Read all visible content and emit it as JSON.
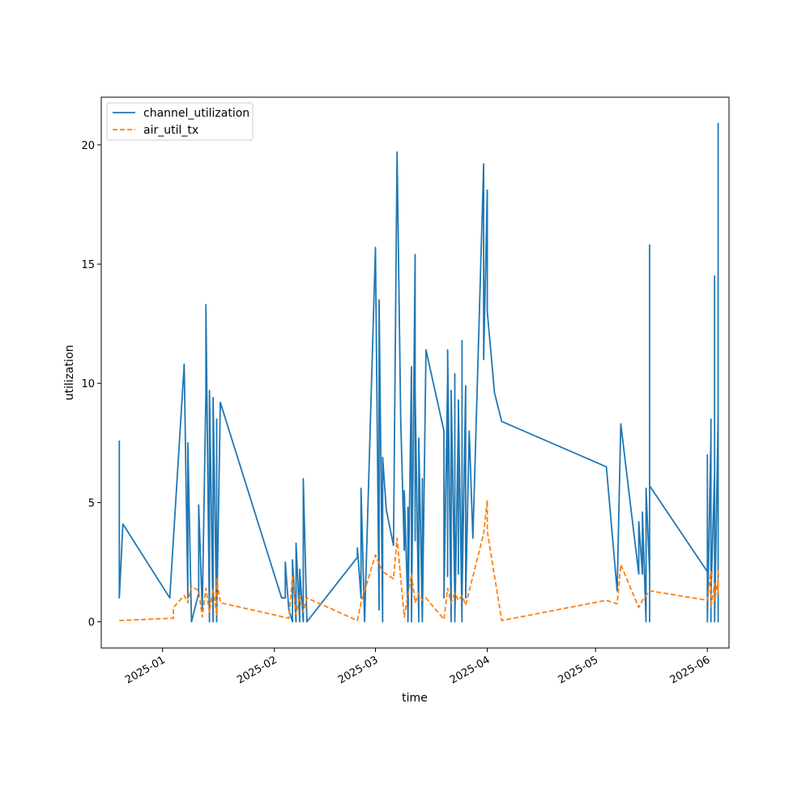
{
  "chart_data": {
    "type": "line",
    "title": "",
    "xlabel": "time",
    "ylabel": "utilization",
    "xlim": [
      "2024-12-15",
      "2025-06-07"
    ],
    "ylim": [
      -1.1,
      22.0
    ],
    "x_ticks": [
      "2025-01-01",
      "2025-02-01",
      "2025-03-01",
      "2025-04-01",
      "2025-05-01",
      "2025-06-01"
    ],
    "x_tick_labels": [
      "2025-01",
      "2025-02",
      "2025-03",
      "2025-04",
      "2025-05",
      "2025-06"
    ],
    "y_ticks": [
      0,
      5,
      10,
      15,
      20
    ],
    "y_tick_labels": [
      "0",
      "5",
      "10",
      "15",
      "20"
    ],
    "grid": false,
    "legend_position": "upper-left",
    "series": [
      {
        "name": "channel_utilization",
        "color": "#1f77b4",
        "style": "solid",
        "points": [
          [
            "2024-12-20",
            7.6
          ],
          [
            "2024-12-20",
            1.0
          ],
          [
            "2024-12-21",
            4.1
          ],
          [
            "2025-01-03",
            1.0
          ],
          [
            "2025-01-07",
            10.8
          ],
          [
            "2025-01-08",
            1.0
          ],
          [
            "2025-01-08",
            7.5
          ],
          [
            "2025-01-09",
            0.0
          ],
          [
            "2025-01-11",
            1.2
          ],
          [
            "2025-01-11",
            4.9
          ],
          [
            "2025-01-12",
            0.5
          ],
          [
            "2025-01-13",
            9.6
          ],
          [
            "2025-01-13",
            13.3
          ],
          [
            "2025-01-14",
            0.0
          ],
          [
            "2025-01-14",
            9.7
          ],
          [
            "2025-01-15",
            0.0
          ],
          [
            "2025-01-15",
            3.2
          ],
          [
            "2025-01-15",
            9.4
          ],
          [
            "2025-01-16",
            0.0
          ],
          [
            "2025-01-16",
            8.5
          ],
          [
            "2025-01-16",
            0.0
          ],
          [
            "2025-01-17",
            9.2
          ],
          [
            "2025-02-03",
            1.0
          ],
          [
            "2025-02-04",
            1.0
          ],
          [
            "2025-02-04",
            2.5
          ],
          [
            "2025-02-05",
            0.5
          ],
          [
            "2025-02-06",
            0.0
          ],
          [
            "2025-02-06",
            2.6
          ],
          [
            "2025-02-07",
            0.0
          ],
          [
            "2025-02-07",
            3.3
          ],
          [
            "2025-02-08",
            0.0
          ],
          [
            "2025-02-08",
            2.2
          ],
          [
            "2025-02-09",
            0.0
          ],
          [
            "2025-02-09",
            5.2
          ],
          [
            "2025-02-09",
            0.5
          ],
          [
            "2025-02-09",
            6.0
          ],
          [
            "2025-02-10",
            0.0
          ],
          [
            "2025-02-24",
            2.7
          ],
          [
            "2025-02-24",
            3.1
          ],
          [
            "2025-02-25",
            1.0
          ],
          [
            "2025-02-25",
            5.6
          ],
          [
            "2025-02-26",
            0.0
          ],
          [
            "2025-03-01",
            15.7
          ],
          [
            "2025-03-02",
            0.5
          ],
          [
            "2025-03-02",
            13.5
          ],
          [
            "2025-03-03",
            0.0
          ],
          [
            "2025-03-03",
            6.9
          ],
          [
            "2025-03-04",
            4.7
          ],
          [
            "2025-03-06",
            3.2
          ],
          [
            "2025-03-07",
            19.7
          ],
          [
            "2025-03-08",
            8.5
          ],
          [
            "2025-03-09",
            3.0
          ],
          [
            "2025-03-09",
            5.5
          ],
          [
            "2025-03-10",
            0.4
          ],
          [
            "2025-03-10",
            4.8
          ],
          [
            "2025-03-10",
            0.0
          ],
          [
            "2025-03-11",
            10.7
          ],
          [
            "2025-03-11",
            0.0
          ],
          [
            "2025-03-12",
            15.4
          ],
          [
            "2025-03-12",
            3.4
          ],
          [
            "2025-03-12",
            9.7
          ],
          [
            "2025-03-13",
            0.0
          ],
          [
            "2025-03-13",
            7.7
          ],
          [
            "2025-03-14",
            0.0
          ],
          [
            "2025-03-14",
            6.0
          ],
          [
            "2025-03-14",
            0.0
          ],
          [
            "2025-03-15",
            11.4
          ],
          [
            "2025-03-20",
            8.0
          ],
          [
            "2025-03-20",
            1.0
          ],
          [
            "2025-03-21",
            10.2
          ],
          [
            "2025-03-21",
            1.9
          ],
          [
            "2025-03-21",
            11.4
          ],
          [
            "2025-03-22",
            0.0
          ],
          [
            "2025-03-22",
            9.7
          ],
          [
            "2025-03-23",
            1.0
          ],
          [
            "2025-03-23",
            10.4
          ],
          [
            "2025-03-23",
            0.0
          ],
          [
            "2025-03-24",
            8.5
          ],
          [
            "2025-03-24",
            2.0
          ],
          [
            "2025-03-24",
            9.3
          ],
          [
            "2025-03-25",
            0.0
          ],
          [
            "2025-03-25",
            11.8
          ],
          [
            "2025-03-25",
            1.0
          ],
          [
            "2025-03-26",
            9.9
          ],
          [
            "2025-03-26",
            1.0
          ],
          [
            "2025-03-27",
            8.0
          ],
          [
            "2025-03-28",
            3.5
          ],
          [
            "2025-03-31",
            19.2
          ],
          [
            "2025-03-31",
            11.0
          ],
          [
            "2025-04-01",
            18.1
          ],
          [
            "2025-04-01",
            13.0
          ],
          [
            "2025-04-03",
            9.6
          ],
          [
            "2025-04-05",
            8.4
          ],
          [
            "2025-05-04",
            6.5
          ],
          [
            "2025-05-07",
            1.3
          ],
          [
            "2025-05-08",
            8.3
          ],
          [
            "2025-05-13",
            2.0
          ],
          [
            "2025-05-13",
            4.2
          ],
          [
            "2025-05-14",
            2.0
          ],
          [
            "2025-05-14",
            4.6
          ],
          [
            "2025-05-15",
            0.0
          ],
          [
            "2025-05-15",
            5.6
          ],
          [
            "2025-05-16",
            2.0
          ],
          [
            "2025-05-16",
            15.8
          ],
          [
            "2025-05-16",
            0.0
          ],
          [
            "2025-05-16",
            5.7
          ],
          [
            "2025-06-01",
            2.1
          ],
          [
            "2025-06-01",
            7.0
          ],
          [
            "2025-06-01",
            0.0
          ],
          [
            "2025-06-02",
            7.8
          ],
          [
            "2025-06-02",
            0.0
          ],
          [
            "2025-06-02",
            8.5
          ],
          [
            "2025-06-02",
            1.0
          ],
          [
            "2025-06-03",
            6.3
          ],
          [
            "2025-06-03",
            0.0
          ],
          [
            "2025-06-03",
            14.5
          ],
          [
            "2025-06-03",
            0.0
          ],
          [
            "2025-06-04",
            8.7
          ],
          [
            "2025-06-04",
            0.0
          ],
          [
            "2025-06-04",
            20.9
          ],
          [
            "2025-06-04",
            0.0
          ]
        ]
      },
      {
        "name": "air_util_tx",
        "color": "#ff7f0e",
        "style": "dashed",
        "points": [
          [
            "2024-12-20",
            0.05
          ],
          [
            "2025-01-04",
            0.15
          ],
          [
            "2025-01-04",
            0.6
          ],
          [
            "2025-01-07",
            1.1
          ],
          [
            "2025-01-08",
            0.8
          ],
          [
            "2025-01-09",
            1.5
          ],
          [
            "2025-01-11",
            1.3
          ],
          [
            "2025-01-12",
            0.2
          ],
          [
            "2025-01-13",
            1.4
          ],
          [
            "2025-01-14",
            0.4
          ],
          [
            "2025-01-15",
            1.4
          ],
          [
            "2025-01-16",
            0.3
          ],
          [
            "2025-01-16",
            1.8
          ],
          [
            "2025-01-17",
            0.8
          ],
          [
            "2025-02-05",
            0.15
          ],
          [
            "2025-02-06",
            1.9
          ],
          [
            "2025-02-07",
            0.3
          ],
          [
            "2025-02-08",
            1.1
          ],
          [
            "2025-02-09",
            0.4
          ],
          [
            "2025-02-10",
            1.0
          ],
          [
            "2025-02-24",
            0.05
          ],
          [
            "2025-02-25",
            0.8
          ],
          [
            "2025-03-01",
            2.8
          ],
          [
            "2025-03-03",
            2.1
          ],
          [
            "2025-03-06",
            1.8
          ],
          [
            "2025-03-07",
            3.5
          ],
          [
            "2025-03-09",
            0.2
          ],
          [
            "2025-03-11",
            2.0
          ],
          [
            "2025-03-12",
            0.8
          ],
          [
            "2025-03-13",
            1.2
          ],
          [
            "2025-03-14",
            0.9
          ],
          [
            "2025-03-15",
            1.0
          ],
          [
            "2025-03-20",
            0.1
          ],
          [
            "2025-03-21",
            1.4
          ],
          [
            "2025-03-22",
            0.8
          ],
          [
            "2025-03-23",
            1.2
          ],
          [
            "2025-03-24",
            0.9
          ],
          [
            "2025-03-25",
            1.1
          ],
          [
            "2025-03-26",
            0.7
          ],
          [
            "2025-03-31",
            3.7
          ],
          [
            "2025-04-01",
            5.1
          ],
          [
            "2025-04-01",
            3.8
          ],
          [
            "2025-04-05",
            0.05
          ],
          [
            "2025-05-04",
            0.9
          ],
          [
            "2025-05-07",
            0.75
          ],
          [
            "2025-05-08",
            2.4
          ],
          [
            "2025-05-13",
            0.6
          ],
          [
            "2025-05-14",
            0.9
          ],
          [
            "2025-05-16",
            1.3
          ],
          [
            "2025-06-01",
            0.9
          ],
          [
            "2025-06-02",
            2.1
          ],
          [
            "2025-06-02",
            0.6
          ],
          [
            "2025-06-03",
            1.6
          ],
          [
            "2025-06-03",
            0.9
          ],
          [
            "2025-06-04",
            1.8
          ],
          [
            "2025-06-04",
            1.2
          ],
          [
            "2025-06-04",
            2.2
          ]
        ]
      }
    ]
  }
}
